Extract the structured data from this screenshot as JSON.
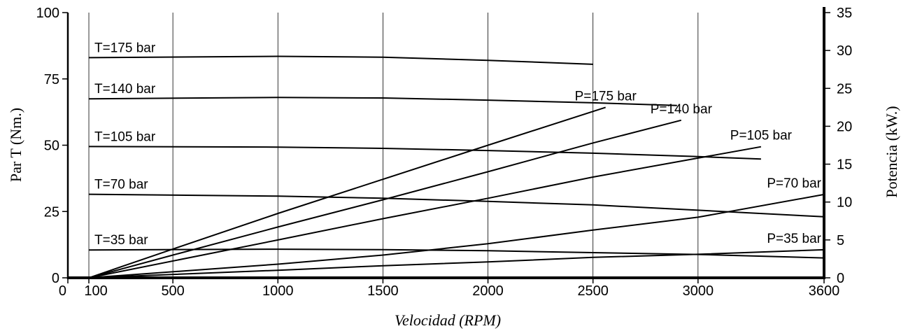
{
  "chart_data": {
    "type": "line",
    "x_axis": {
      "label": "Velocidad (RPM)",
      "ticks": [
        0,
        100,
        500,
        1000,
        1500,
        2000,
        2500,
        3000,
        3600
      ],
      "tick_labels": [
        "0",
        "100",
        "500",
        "1000",
        "1500",
        "2000",
        "2500",
        "3000",
        "3600"
      ],
      "range": [
        0,
        3600
      ]
    },
    "y_left_axis": {
      "label": "Par T (Nm.)",
      "ticks": [
        0,
        25,
        50,
        75,
        100
      ],
      "range": [
        0,
        100
      ]
    },
    "y_right_axis": {
      "label": "Potencia (kW.)",
      "ticks": [
        0,
        5,
        10,
        15,
        20,
        25,
        30,
        35
      ],
      "range": [
        0,
        35
      ]
    },
    "grid": {
      "vertical": true,
      "horizontal": false
    },
    "torque_series": [
      {
        "name": "T=175 bar",
        "axis": "left",
        "x": [
          100,
          1000,
          1500,
          2000,
          2500
        ],
        "values": [
          83,
          83.5,
          83.2,
          82,
          80.5
        ]
      },
      {
        "name": "T=140 bar",
        "axis": "left",
        "x": [
          100,
          1000,
          1500,
          2000,
          2500,
          2900
        ],
        "values": [
          67.5,
          68,
          67.8,
          67,
          66,
          65
        ]
      },
      {
        "name": "T=105 bar",
        "axis": "left",
        "x": [
          100,
          1000,
          1500,
          2000,
          2500,
          3000,
          3300
        ],
        "values": [
          49.5,
          49.3,
          48.8,
          48,
          47,
          45.7,
          44.8
        ]
      },
      {
        "name": "T=70 bar",
        "axis": "left",
        "x": [
          100,
          1000,
          1500,
          2000,
          2500,
          3000,
          3600
        ],
        "values": [
          31.5,
          30.8,
          30,
          28.8,
          27.5,
          25.5,
          23
        ]
      },
      {
        "name": "T=35 bar",
        "axis": "left",
        "x": [
          100,
          1000,
          1500,
          2000,
          2500,
          3000,
          3600
        ],
        "values": [
          10.5,
          10.8,
          10.6,
          10.2,
          9.5,
          8.8,
          7.5
        ]
      }
    ],
    "power_series": [
      {
        "name": "P=175 bar",
        "axis": "right",
        "x": [
          100,
          500,
          1000,
          1500,
          2000,
          2560
        ],
        "values": [
          0,
          3.8,
          8.5,
          13,
          17.5,
          22.5
        ]
      },
      {
        "name": "P=140 bar",
        "axis": "right",
        "x": [
          100,
          500,
          1000,
          1500,
          2000,
          2500,
          2920
        ],
        "values": [
          0,
          3,
          6.7,
          10.3,
          14,
          17.8,
          20.8
        ]
      },
      {
        "name": "P=105 bar",
        "axis": "right",
        "x": [
          100,
          1000,
          1500,
          2000,
          2500,
          3000,
          3300
        ],
        "values": [
          0,
          5,
          7.8,
          10.5,
          13.3,
          15.8,
          17.3
        ]
      },
      {
        "name": "P=70 bar",
        "axis": "right",
        "x": [
          100,
          1000,
          1500,
          2000,
          2500,
          3000,
          3600
        ],
        "values": [
          0,
          1.8,
          3,
          4.5,
          6.3,
          8,
          11
        ]
      },
      {
        "name": "P=35 bar",
        "axis": "right",
        "x": [
          100,
          1000,
          1500,
          2000,
          2500,
          3000,
          3600
        ],
        "values": [
          0,
          1,
          1.6,
          2.1,
          2.7,
          3.1,
          3.7
        ]
      }
    ]
  }
}
